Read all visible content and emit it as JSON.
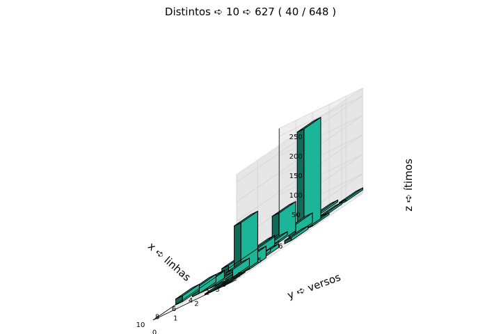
{
  "chart_data": {
    "type": "bar3d",
    "title": "Distintos ➪ 10 ➪ 627 ( 40 / 648 )",
    "xlabel": "x ➪ linhas",
    "ylabel": "y ➪ versos",
    "zlabel": "z ➪ ítimos",
    "xlim": [
      0,
      10
    ],
    "ylim": [
      0,
      6
    ],
    "zlim": [
      0,
      270
    ],
    "xticks": [
      "0",
      "2",
      "4",
      "6",
      "8",
      "10"
    ],
    "yticks": [
      "0",
      "1",
      "2",
      "3",
      "4",
      "5",
      "6"
    ],
    "zticks": [
      "50",
      "100",
      "150",
      "200",
      "250"
    ],
    "grid": true,
    "bar_color": "#1fbf9f",
    "bars": [
      {
        "x": 1,
        "y": 0,
        "z": 3
      },
      {
        "x": 2,
        "y": 0,
        "z": 3
      },
      {
        "x": 3,
        "y": 0,
        "z": 3
      },
      {
        "x": 1,
        "y": 1,
        "z": 30
      },
      {
        "x": 2,
        "y": 1,
        "z": 130
      },
      {
        "x": 3,
        "y": 1,
        "z": 20
      },
      {
        "x": 2,
        "y": 2,
        "z": 10
      },
      {
        "x": 3,
        "y": 2,
        "z": 8
      },
      {
        "x": 1,
        "y": 3,
        "z": 8
      },
      {
        "x": 1,
        "y": 4,
        "z": 5
      },
      {
        "x": 2,
        "y": 4,
        "z": 260
      },
      {
        "x": 3,
        "y": 4,
        "z": 25
      },
      {
        "x": 2,
        "y": 5,
        "z": 5
      },
      {
        "x": 2,
        "y": 6,
        "z": 5
      },
      {
        "x": 5,
        "y": 1,
        "z": 5
      },
      {
        "x": 6,
        "y": 1,
        "z": 20
      },
      {
        "x": 7,
        "y": 1,
        "z": 20
      },
      {
        "x": 5,
        "y": 2,
        "z": 25
      },
      {
        "x": 6,
        "y": 2,
        "z": 25
      },
      {
        "x": 5,
        "y": 3,
        "z": 25
      },
      {
        "x": 6,
        "y": 4,
        "z": 8
      },
      {
        "x": 5,
        "y": 4,
        "z": 75
      },
      {
        "x": 5,
        "y": 5,
        "z": 8
      },
      {
        "x": 5,
        "y": 6,
        "z": 5
      },
      {
        "x": 9,
        "y": 1,
        "z": 15
      },
      {
        "x": 9,
        "y": 2,
        "z": 5
      }
    ]
  }
}
